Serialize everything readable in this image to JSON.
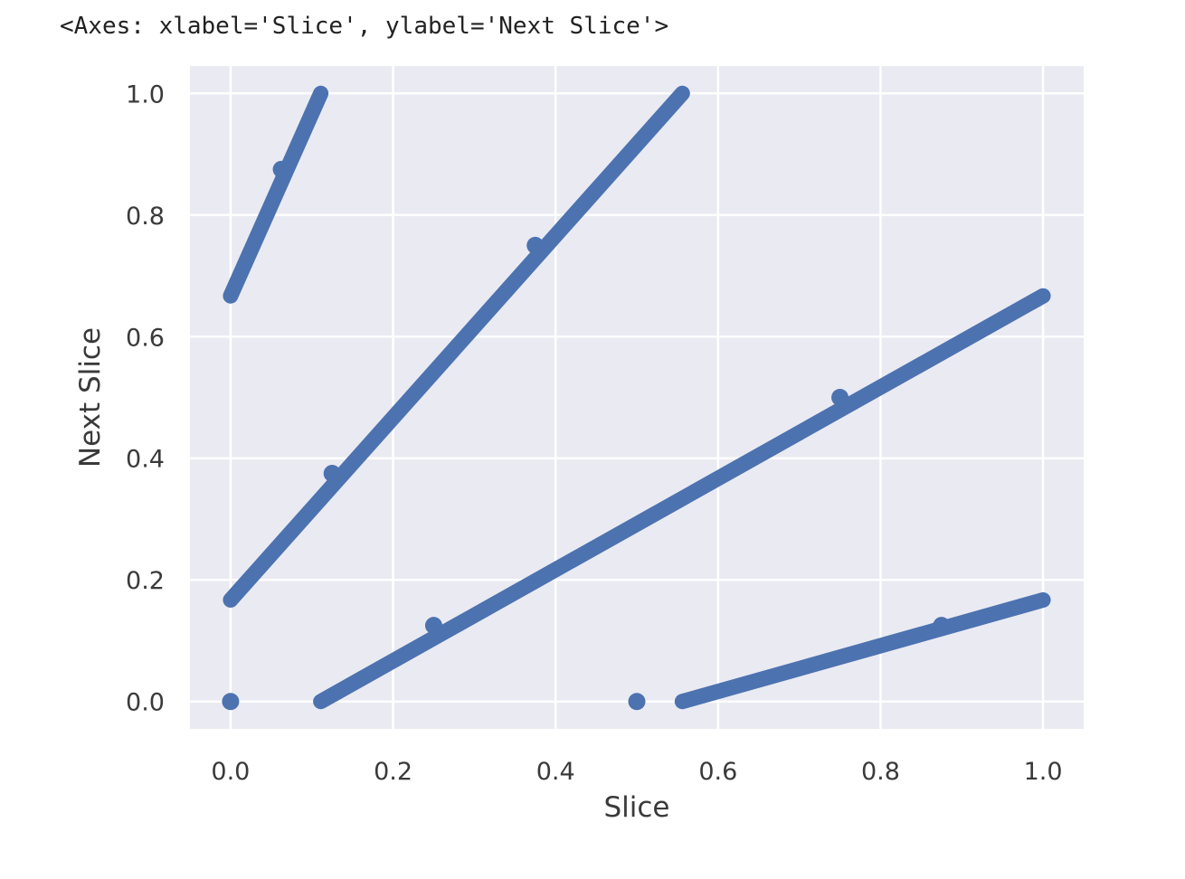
{
  "output_repr": "<Axes: xlabel='Slice', ylabel='Next Slice'>",
  "chart_data": {
    "type": "scatter",
    "title": "",
    "xlabel": "Slice",
    "ylabel": "Next Slice",
    "xlim": [
      -0.05,
      1.05
    ],
    "ylim": [
      -0.045,
      1.045
    ],
    "xticks": [
      "0.0",
      "0.2",
      "0.4",
      "0.6",
      "0.8",
      "1.0"
    ],
    "yticks": [
      "0.0",
      "0.2",
      "0.4",
      "0.6",
      "0.8",
      "1.0"
    ],
    "grid": true,
    "background": "#eaeaf2",
    "grid_color": "#ffffff",
    "marker_color": "#4c72b0",
    "segments": [
      {
        "x0": 0.0,
        "x1": 0.111,
        "y0": 0.667,
        "y1": 1.0
      },
      {
        "x0": 0.0,
        "x1": 0.556,
        "y0": 0.167,
        "y1": 1.0
      },
      {
        "x0": 0.111,
        "x1": 1.0,
        "y0": 0.0,
        "y1": 0.667
      },
      {
        "x0": 0.556,
        "x1": 1.0,
        "y0": 0.0,
        "y1": 0.167
      }
    ],
    "outlier_points": [
      {
        "x": 0.0,
        "y": 0.0
      },
      {
        "x": 0.5,
        "y": 0.0
      },
      {
        "x": 0.0625,
        "y": 0.875
      },
      {
        "x": 0.125,
        "y": 0.375
      },
      {
        "x": 0.375,
        "y": 0.75
      },
      {
        "x": 0.25,
        "y": 0.125
      },
      {
        "x": 0.75,
        "y": 0.5
      },
      {
        "x": 0.875,
        "y": 0.125
      }
    ]
  }
}
